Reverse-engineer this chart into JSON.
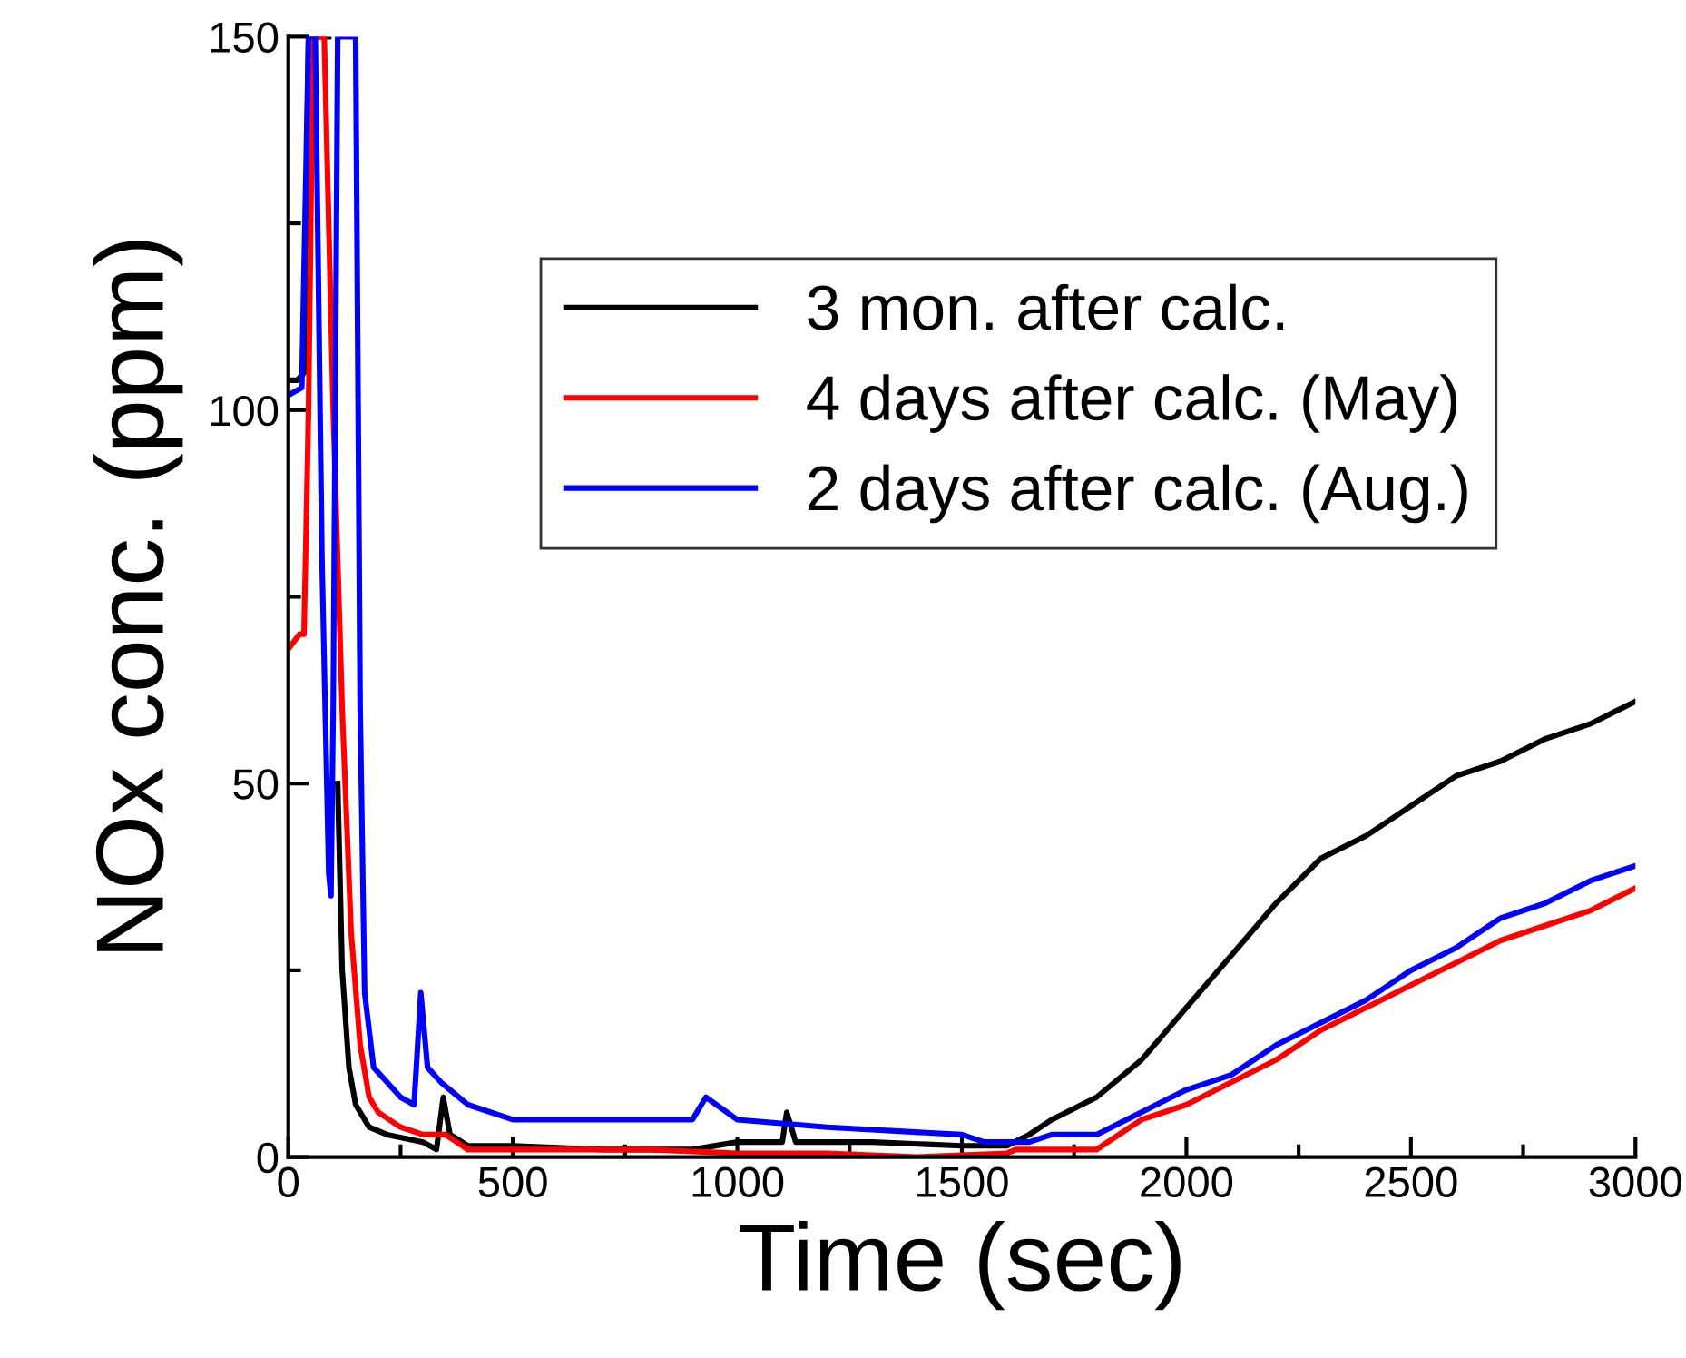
{
  "chart_data": {
    "type": "line",
    "xlabel": "Time (sec)",
    "ylabel": "NOx conc. (ppm)",
    "xlim": [
      0,
      3000
    ],
    "ylim": [
      0,
      150
    ],
    "xticks": [
      0,
      500,
      1000,
      1500,
      2000,
      2500,
      3000
    ],
    "yticks": [
      0,
      50,
      100,
      150
    ],
    "legend": "top right",
    "grid": false,
    "series": [
      {
        "name": "3 mon. after calc.",
        "color": "#000000",
        "x": [
          0,
          20,
          35,
          45,
          90,
          100,
          110,
          120,
          135,
          150,
          180,
          220,
          300,
          330,
          345,
          360,
          400,
          500,
          700,
          900,
          1000,
          1100,
          1110,
          1130,
          1300,
          1500,
          1600,
          1650,
          1700,
          1800,
          1900,
          2000,
          2100,
          2200,
          2300,
          2400,
          2500,
          2600,
          2700,
          2800,
          2900,
          3000
        ],
        "values": [
          104,
          104,
          105,
          150,
          150,
          null,
          50,
          25,
          12,
          7,
          4,
          3,
          2,
          1,
          8,
          3,
          1.5,
          1.5,
          1,
          1,
          2,
          2,
          6,
          2,
          2,
          1.5,
          1.5,
          3,
          5,
          8,
          13,
          20,
          27,
          34,
          40,
          43,
          47,
          51,
          53,
          56,
          58,
          61
        ]
      },
      {
        "name": "4 days after calc. (May)",
        "color": "#ff0000",
        "x": [
          0,
          25,
          35,
          45,
          55,
          80,
          100,
          120,
          140,
          160,
          180,
          200,
          250,
          300,
          350,
          400,
          600,
          800,
          1000,
          1200,
          1400,
          1600,
          1620,
          1800,
          1850,
          1900,
          2000,
          2100,
          2200,
          2300,
          2400,
          2500,
          2600,
          2700,
          2800,
          2900,
          3000
        ],
        "values": [
          68,
          70,
          70,
          100,
          150,
          150,
          100,
          60,
          30,
          15,
          8,
          6,
          4,
          3,
          3,
          1,
          1,
          1,
          0.5,
          0.5,
          0,
          0.5,
          1,
          1,
          3,
          5,
          7,
          10,
          13,
          17,
          20,
          23,
          26,
          29,
          31,
          33,
          36
        ]
      },
      {
        "name": "2 days after calc. (Aug.)",
        "color": "#0000ff",
        "x": [
          0,
          30,
          45,
          60,
          75,
          90,
          95,
          100,
          110,
          150,
          160,
          170,
          190,
          220,
          250,
          280,
          295,
          310,
          340,
          400,
          500,
          700,
          900,
          930,
          1000,
          1200,
          1500,
          1550,
          1650,
          1700,
          1800,
          1900,
          2000,
          2100,
          2200,
          2300,
          2400,
          2500,
          2600,
          2700,
          2800,
          2900,
          3000
        ],
        "values": [
          102,
          103,
          150,
          150,
          80,
          38,
          35,
          60,
          150,
          150,
          60,
          22,
          12,
          10,
          8,
          7,
          22,
          12,
          10,
          7,
          5,
          5,
          5,
          8,
          5,
          4,
          3,
          2,
          2,
          3,
          3,
          6,
          9,
          11,
          15,
          18,
          21,
          25,
          28,
          32,
          34,
          37,
          39
        ]
      }
    ]
  }
}
